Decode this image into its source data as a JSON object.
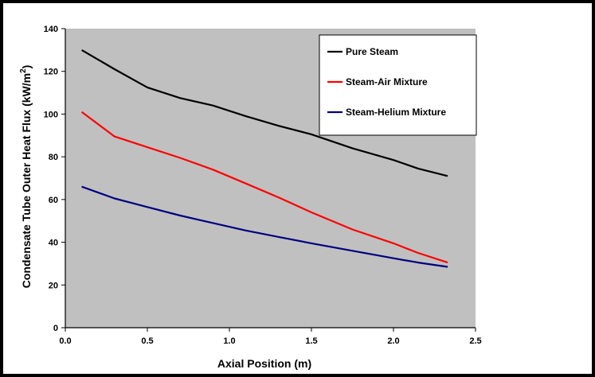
{
  "chart_data": {
    "type": "line",
    "xlabel": "Axial Position (m)",
    "ylabel": "Condensate Tube Outer Heat Flux (kW/m",
    "ylabel_sup": "2",
    "ylabel_end": ")",
    "xlim": [
      0,
      2.5
    ],
    "ylim": [
      0,
      140
    ],
    "xticks": [
      0.0,
      0.5,
      1.0,
      1.5,
      2.0,
      2.5
    ],
    "xtick_labels": [
      "0.0",
      "0.5",
      "1.0",
      "1.5",
      "2.0",
      "2.5"
    ],
    "yticks": [
      0,
      20,
      40,
      60,
      80,
      100,
      120,
      140
    ],
    "ytick_labels": [
      "0",
      "20",
      "40",
      "60",
      "80",
      "100",
      "120",
      "140"
    ],
    "grid": false,
    "legend_position": "top-right",
    "plot_background": "#c0c0c0",
    "series": [
      {
        "name": "Pure Steam",
        "color": "#000000",
        "x": [
          0.1,
          0.3,
          0.5,
          0.7,
          0.9,
          1.1,
          1.3,
          1.5,
          1.75,
          2.0,
          2.15,
          2.33
        ],
        "y": [
          130,
          121,
          112.5,
          107.5,
          104,
          99,
          94.5,
          90.5,
          84,
          78.5,
          74.5,
          71
        ]
      },
      {
        "name": "Steam-Air Mixture",
        "color": "#ff0000",
        "x": [
          0.1,
          0.3,
          0.5,
          0.7,
          0.9,
          1.1,
          1.3,
          1.5,
          1.75,
          2.0,
          2.15,
          2.33
        ],
        "y": [
          101,
          89.5,
          84.5,
          79.5,
          74,
          67.5,
          61,
          54,
          46,
          39.5,
          35,
          30.5
        ]
      },
      {
        "name": "Steam-Helium Mixture",
        "color": "#000080",
        "x": [
          0.1,
          0.3,
          0.5,
          0.7,
          0.9,
          1.1,
          1.3,
          1.5,
          1.75,
          2.0,
          2.15,
          2.33
        ],
        "y": [
          66,
          60.5,
          56.5,
          52.5,
          49,
          45.5,
          42.5,
          39.5,
          36,
          32.5,
          30.5,
          28.5
        ]
      }
    ]
  }
}
